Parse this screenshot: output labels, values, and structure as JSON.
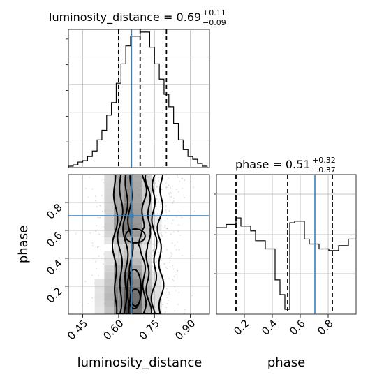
{
  "chart_data": {
    "type": "corner",
    "params": [
      "luminosity_distance",
      "phase"
    ],
    "truth": {
      "luminosity_distance": 0.654,
      "phase": 0.705
    },
    "colors": {
      "truth": "#3b7fb5",
      "lines": "#000000",
      "grid": "#b0b0b0"
    },
    "grid": true,
    "luminosity_distance": {
      "title": {
        "main": "luminosity_distance = 0.69",
        "plus": "+0.11",
        "minus": "−0.09"
      },
      "xlabel": "luminosity_distance",
      "xlim": [
        0.39,
        0.98
      ],
      "ticks": [
        0.45,
        0.6,
        0.75,
        0.9
      ],
      "tick_labels": [
        "0.45",
        "0.60",
        "0.75",
        "0.90"
      ],
      "quantiles": [
        0.6,
        0.69,
        0.8
      ],
      "hist_edges": [
        0.39,
        0.41,
        0.43,
        0.45,
        0.47,
        0.49,
        0.51,
        0.53,
        0.55,
        0.57,
        0.59,
        0.61,
        0.63,
        0.65,
        0.67,
        0.69,
        0.71,
        0.73,
        0.75,
        0.77,
        0.79,
        0.81,
        0.83,
        0.85,
        0.87,
        0.89,
        0.91,
        0.93,
        0.95,
        0.97
      ],
      "hist_counts": [
        1,
        2,
        4,
        5,
        8,
        12,
        20,
        27,
        38,
        47,
        61,
        75,
        88,
        95,
        95,
        98,
        98,
        87,
        75,
        64,
        53,
        44,
        32,
        20,
        13,
        8,
        6,
        3,
        1
      ]
    },
    "phase": {
      "title": {
        "main": "phase = 0.51",
        "plus": "+0.32",
        "minus": "−0.37"
      },
      "xlabel": "phase",
      "ylabel": "phase",
      "lim": [
        0,
        1
      ],
      "ticks": [
        0.2,
        0.4,
        0.6,
        0.8
      ],
      "tick_labels": [
        "0.2",
        "0.4",
        "0.6",
        "0.8"
      ],
      "quantiles": [
        0.14,
        0.51,
        0.83
      ],
      "hist_edges": [
        0.0,
        0.035,
        0.07,
        0.105,
        0.14,
        0.175,
        0.21,
        0.245,
        0.28,
        0.315,
        0.35,
        0.385,
        0.42,
        0.455,
        0.49,
        0.525,
        0.56,
        0.595,
        0.63,
        0.665,
        0.7,
        0.735,
        0.77,
        0.805,
        0.84,
        0.875,
        0.91,
        0.945,
        0.98,
        1.0
      ],
      "hist_counts": [
        53,
        53,
        55,
        55,
        59,
        54,
        54,
        51,
        45,
        45,
        40,
        40,
        21,
        12,
        3,
        56,
        57,
        57,
        46,
        43,
        43,
        40,
        40,
        39,
        39,
        42,
        42,
        46,
        46
      ]
    },
    "density_2d": {
      "x_edges": [
        0.42,
        0.46,
        0.5,
        0.54,
        0.58,
        0.62,
        0.66,
        0.7,
        0.74,
        0.78,
        0.82,
        0.86,
        0.9,
        0.94
      ],
      "y_edges": [
        0.0,
        0.05,
        0.1,
        0.15,
        0.2,
        0.25,
        0.3,
        0.35,
        0.4,
        0.45,
        0.5,
        0.55,
        0.6,
        0.65,
        0.7,
        0.75,
        0.8,
        0.85,
        0.9,
        0.95,
        1.0
      ],
      "counts": [
        [
          0.02,
          0.05,
          0.12,
          0.3,
          0.55,
          0.95,
          0.7,
          0.4,
          0.15,
          0.06,
          0.03,
          0.01,
          0.0
        ],
        [
          0.02,
          0.06,
          0.14,
          0.34,
          0.62,
          0.9,
          0.75,
          0.42,
          0.16,
          0.06,
          0.03,
          0.01,
          0.0
        ],
        [
          0.02,
          0.06,
          0.15,
          0.36,
          0.6,
          0.85,
          0.72,
          0.4,
          0.16,
          0.06,
          0.02,
          0.01,
          0.0
        ],
        [
          0.02,
          0.06,
          0.14,
          0.34,
          0.62,
          0.82,
          0.7,
          0.38,
          0.15,
          0.05,
          0.02,
          0.01,
          0.0
        ],
        [
          0.02,
          0.05,
          0.12,
          0.3,
          0.55,
          0.75,
          0.6,
          0.32,
          0.13,
          0.05,
          0.02,
          0.01,
          0.0
        ],
        [
          0.02,
          0.05,
          0.1,
          0.26,
          0.5,
          0.7,
          0.52,
          0.3,
          0.12,
          0.05,
          0.02,
          0.01,
          0.0
        ],
        [
          0.01,
          0.04,
          0.09,
          0.22,
          0.42,
          0.55,
          0.45,
          0.26,
          0.1,
          0.04,
          0.02,
          0.0,
          0.0
        ],
        [
          0.01,
          0.03,
          0.07,
          0.16,
          0.3,
          0.4,
          0.34,
          0.2,
          0.08,
          0.03,
          0.01,
          0.0,
          0.0
        ],
        [
          0.01,
          0.02,
          0.05,
          0.12,
          0.22,
          0.3,
          0.26,
          0.15,
          0.06,
          0.02,
          0.01,
          0.0,
          0.0
        ],
        [
          0.01,
          0.02,
          0.04,
          0.1,
          0.2,
          0.26,
          0.22,
          0.12,
          0.05,
          0.02,
          0.01,
          0.0,
          0.0
        ],
        [
          0.01,
          0.03,
          0.06,
          0.14,
          0.3,
          0.42,
          0.36,
          0.2,
          0.08,
          0.03,
          0.01,
          0.0,
          0.0
        ],
        [
          0.01,
          0.04,
          0.09,
          0.22,
          0.45,
          0.62,
          0.5,
          0.28,
          0.1,
          0.04,
          0.02,
          0.0,
          0.0
        ],
        [
          0.02,
          0.05,
          0.11,
          0.26,
          0.52,
          0.7,
          0.55,
          0.3,
          0.12,
          0.05,
          0.02,
          0.01,
          0.0
        ],
        [
          0.02,
          0.05,
          0.11,
          0.25,
          0.5,
          0.66,
          0.52,
          0.3,
          0.12,
          0.05,
          0.02,
          0.01,
          0.0
        ],
        [
          0.02,
          0.05,
          0.1,
          0.24,
          0.48,
          0.64,
          0.5,
          0.28,
          0.11,
          0.04,
          0.02,
          0.0,
          0.0
        ],
        [
          0.02,
          0.05,
          0.1,
          0.23,
          0.46,
          0.62,
          0.48,
          0.27,
          0.11,
          0.04,
          0.02,
          0.0,
          0.0
        ],
        [
          0.02,
          0.05,
          0.1,
          0.23,
          0.45,
          0.6,
          0.46,
          0.26,
          0.1,
          0.04,
          0.02,
          0.0,
          0.0
        ],
        [
          0.02,
          0.05,
          0.1,
          0.22,
          0.44,
          0.58,
          0.45,
          0.25,
          0.1,
          0.04,
          0.02,
          0.0,
          0.0
        ],
        [
          0.02,
          0.04,
          0.09,
          0.21,
          0.42,
          0.56,
          0.44,
          0.24,
          0.1,
          0.04,
          0.02,
          0.0,
          0.0
        ],
        [
          0.02,
          0.04,
          0.09,
          0.2,
          0.4,
          0.55,
          0.42,
          0.24,
          0.1,
          0.04,
          0.02,
          0.0,
          0.0
        ]
      ],
      "contour_levels": [
        "0.5σ",
        "1σ",
        "1.5σ",
        "2σ"
      ]
    }
  }
}
